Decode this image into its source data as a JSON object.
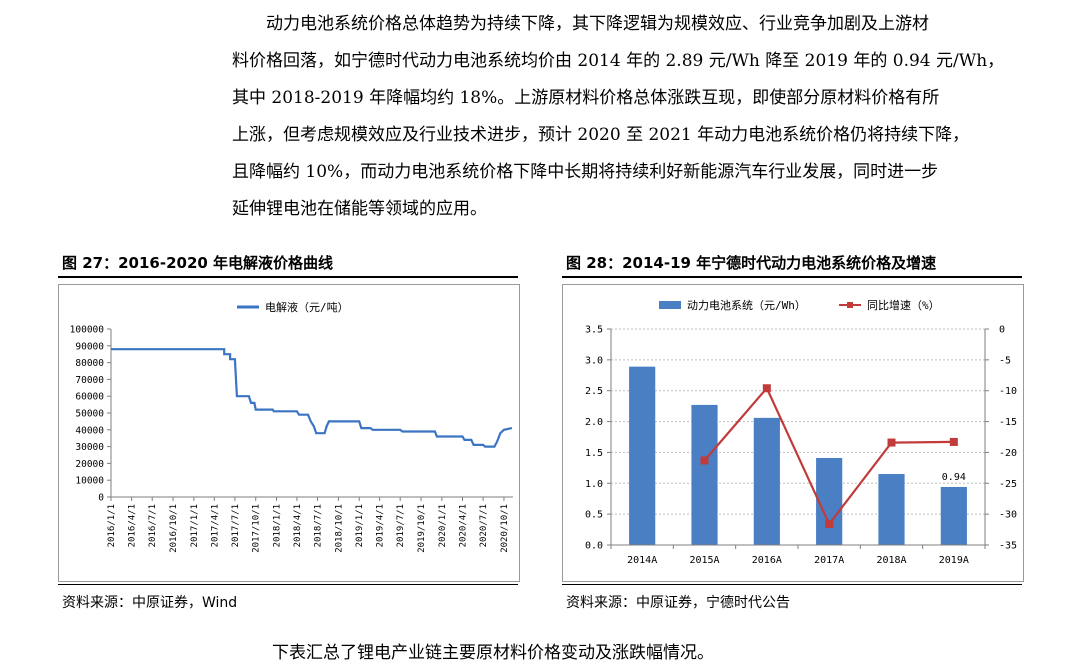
{
  "paragraph": {
    "lines": [
      "动力电池系统价格总体趋势为持续下降，其下降逻辑为规模效应、行业竞争加剧及上游材",
      "料价格回落，如宁德时代动力电池系统均价由 2014 年的 2.89 元/Wh 降至 2019 年的 0.94 元/Wh，",
      "其中 2018-2019 年降幅均约 18%。上游原材料价格总体涨跌互现，即使部分原材料价格有所",
      "上涨，但考虑规模效应及行业技术进步，预计 2020 至 2021 年动力电池系统价格仍将持续下降，",
      "且降幅约 10%，而动力电池系统价格下降中长期将持续利好新能源汽车行业发展，同时进一步",
      "延伸锂电池在储能等领域的应用。"
    ]
  },
  "figure27": {
    "title": "图 27：2016-2020 年电解液价格曲线",
    "source": "资料来源：中原证券，Wind"
  },
  "figure28": {
    "title": "图 28：2014-19 年宁德时代动力电池系统价格及增速",
    "source": "资料来源：中原证券，宁德时代公告"
  },
  "bottom_text": "下表汇总了锂电产业链主要原材料价格变动及涨跌幅情况。",
  "chart_data": [
    {
      "type": "line",
      "legend": [
        "电解液（元/吨）"
      ],
      "legend_position": "top",
      "ylim": [
        0,
        100000
      ],
      "yticks": [
        0,
        10000,
        20000,
        30000,
        40000,
        50000,
        60000,
        70000,
        80000,
        90000,
        100000
      ],
      "x_tick_labels": [
        "2016/1/1",
        "2016/4/1",
        "2016/7/1",
        "2016/10/1",
        "2017/1/1",
        "2017/4/1",
        "2017/7/1",
        "2017/10/1",
        "2018/1/1",
        "2018/4/1",
        "2018/7/1",
        "2018/10/1",
        "2019/1/1",
        "2019/4/1",
        "2019/7/1",
        "2019/10/1",
        "2020/1/1",
        "2020/4/1",
        "2020/7/1",
        "2020/10/1"
      ],
      "color": "#3a74c2",
      "series": [
        {
          "name": "电解液（元/吨）",
          "points": [
            [
              "2016-01-01",
              88000
            ],
            [
              "2017-05-15",
              88000
            ],
            [
              "2017-05-15",
              85000
            ],
            [
              "2017-06-10",
              85000
            ],
            [
              "2017-06-10",
              82000
            ],
            [
              "2017-07-01",
              82000
            ],
            [
              "2017-07-10",
              60000
            ],
            [
              "2017-09-01",
              60000
            ],
            [
              "2017-09-10",
              56000
            ],
            [
              "2017-09-25",
              56000
            ],
            [
              "2017-10-01",
              52000
            ],
            [
              "2017-12-15",
              52000
            ],
            [
              "2017-12-20",
              51000
            ],
            [
              "2018-04-01",
              51000
            ],
            [
              "2018-04-10",
              49000
            ],
            [
              "2018-05-20",
              49000
            ],
            [
              "2018-06-01",
              45000
            ],
            [
              "2018-06-15",
              42000
            ],
            [
              "2018-06-25",
              38000
            ],
            [
              "2018-08-01",
              38000
            ],
            [
              "2018-08-10",
              42000
            ],
            [
              "2018-08-20",
              45000
            ],
            [
              "2019-01-01",
              45000
            ],
            [
              "2019-01-10",
              41000
            ],
            [
              "2019-02-20",
              41000
            ],
            [
              "2019-03-01",
              40000
            ],
            [
              "2019-07-01",
              40000
            ],
            [
              "2019-07-10",
              39000
            ],
            [
              "2019-12-01",
              39000
            ],
            [
              "2019-12-10",
              36000
            ],
            [
              "2020-04-01",
              36000
            ],
            [
              "2020-04-10",
              34000
            ],
            [
              "2020-05-10",
              34000
            ],
            [
              "2020-05-20",
              31000
            ],
            [
              "2020-07-01",
              31000
            ],
            [
              "2020-07-10",
              30000
            ],
            [
              "2020-08-20",
              30000
            ],
            [
              "2020-09-01",
              33000
            ],
            [
              "2020-09-15",
              38000
            ],
            [
              "2020-10-01",
              40000
            ],
            [
              "2020-11-05",
              41000
            ]
          ]
        }
      ]
    },
    {
      "type": "bar+line",
      "categories": [
        "2014A",
        "2015A",
        "2016A",
        "2017A",
        "2018A",
        "2019A"
      ],
      "legend_position": "top",
      "bar_color": "#4a7fc4",
      "line_color": "#c23b3b",
      "ylim_left": [
        0,
        3.5
      ],
      "yticks_left": [
        "0.0",
        "0.5",
        "1.0",
        "1.5",
        "2.0",
        "2.5",
        "3.0",
        "3.5"
      ],
      "ylim_right": [
        -35,
        0
      ],
      "yticks_right": [
        "0",
        "-5",
        "-10",
        "-15",
        "-20",
        "-25",
        "-30",
        "-35"
      ],
      "series": [
        {
          "name": "动力电池系统（元/Wh）",
          "type": "bar",
          "axis": "left",
          "values": [
            2.89,
            2.27,
            2.06,
            1.41,
            1.15,
            0.94
          ]
        },
        {
          "name": "同比增速（%）",
          "type": "line",
          "axis": "right",
          "values": [
            null,
            -21.3,
            -9.6,
            -31.6,
            -18.4,
            -18.3
          ]
        }
      ],
      "data_labels": [
        {
          "category": "2019A",
          "text": "0.94"
        }
      ]
    }
  ]
}
